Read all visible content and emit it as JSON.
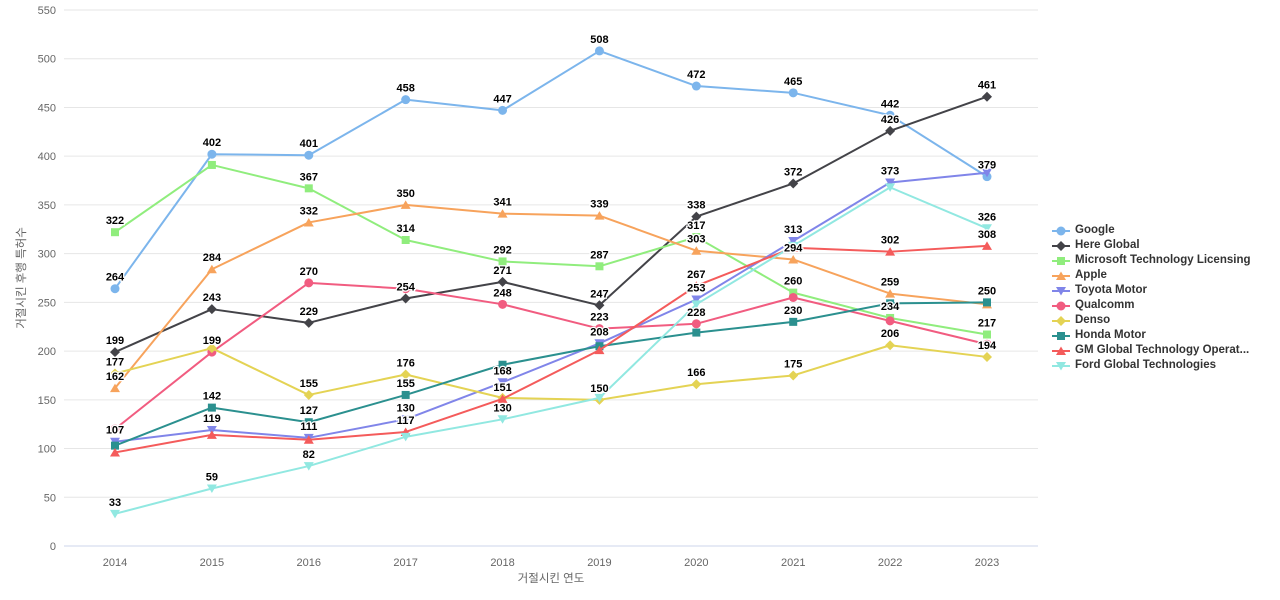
{
  "chart_data": {
    "type": "line",
    "title": "",
    "xlabel": "거절시킨 연도",
    "ylabel": "거절시킨 후행 특허수",
    "categories": [
      "2014",
      "2015",
      "2016",
      "2017",
      "2018",
      "2019",
      "2020",
      "2021",
      "2022",
      "2023"
    ],
    "y_ticks": [
      0,
      50,
      100,
      150,
      200,
      250,
      300,
      350,
      400,
      450,
      500,
      550
    ],
    "ylim": [
      0,
      550
    ],
    "grid": "horizontal-only",
    "legend_position": "right",
    "series": [
      {
        "name": "Google",
        "color": "#7CB5EC",
        "marker": "circle",
        "values": [
          264,
          402,
          401,
          458,
          447,
          508,
          472,
          465,
          442,
          379
        ],
        "labeled": [
          true,
          true,
          true,
          true,
          true,
          true,
          true,
          true,
          true,
          true
        ]
      },
      {
        "name": "Here Global",
        "color": "#434348",
        "marker": "diamond",
        "values": [
          199,
          243,
          229,
          254,
          271,
          247,
          338,
          372,
          426,
          461
        ],
        "labeled": [
          true,
          true,
          true,
          true,
          true,
          true,
          true,
          true,
          true,
          true
        ]
      },
      {
        "name": "Microsoft Technology Licensing",
        "color": "#90ED7D",
        "marker": "square",
        "values": [
          322,
          391,
          367,
          314,
          292,
          287,
          317,
          260,
          234,
          217
        ],
        "labeled": [
          true,
          false,
          true,
          true,
          true,
          true,
          true,
          true,
          true,
          true
        ]
      },
      {
        "name": "Apple",
        "color": "#F7A35C",
        "marker": "triangle",
        "values": [
          162,
          284,
          332,
          350,
          341,
          339,
          303,
          294,
          259,
          248
        ],
        "labeled": [
          true,
          true,
          true,
          true,
          true,
          true,
          true,
          true,
          true,
          false
        ]
      },
      {
        "name": "Toyota Motor",
        "color": "#8085E9",
        "marker": "triangle-down",
        "values": [
          107,
          119,
          111,
          130,
          168,
          208,
          253,
          313,
          373,
          383
        ],
        "labeled": [
          true,
          true,
          true,
          true,
          true,
          true,
          true,
          true,
          true,
          false
        ]
      },
      {
        "name": "Qualcomm",
        "color": "#F15C80",
        "marker": "circle",
        "values": [
          120,
          199,
          270,
          264,
          248,
          223,
          228,
          255,
          231,
          207
        ],
        "labeled": [
          false,
          true,
          true,
          false,
          true,
          true,
          true,
          false,
          false,
          false
        ]
      },
      {
        "name": "Denso",
        "color": "#E4D354",
        "marker": "diamond",
        "values": [
          177,
          203,
          155,
          176,
          152,
          150,
          166,
          175,
          206,
          194
        ],
        "labeled": [
          true,
          false,
          true,
          true,
          false,
          true,
          true,
          true,
          true,
          true
        ]
      },
      {
        "name": "Honda Motor",
        "color": "#2B908F",
        "marker": "square",
        "values": [
          103,
          142,
          127,
          155,
          186,
          205,
          219,
          230,
          249,
          250
        ],
        "labeled": [
          false,
          true,
          true,
          true,
          false,
          false,
          false,
          true,
          false,
          true
        ]
      },
      {
        "name": "GM Global Technology Operat...",
        "color": "#F45B5B",
        "marker": "triangle",
        "values": [
          96,
          114,
          109,
          117,
          151,
          201,
          267,
          306,
          302,
          308
        ],
        "labeled": [
          false,
          false,
          false,
          true,
          true,
          false,
          true,
          false,
          true,
          true
        ]
      },
      {
        "name": "Ford Global Technologies",
        "color": "#91E8E1",
        "marker": "triangle-down",
        "values": [
          33,
          59,
          82,
          112,
          130,
          152,
          248,
          308,
          368,
          326
        ],
        "labeled": [
          true,
          true,
          true,
          false,
          true,
          false,
          false,
          false,
          false,
          true
        ]
      }
    ]
  },
  "colors": {
    "background": "#ffffff",
    "gridline": "#e6e6e6",
    "axis_line": "#ccd6eb",
    "tick_text": "#666666",
    "axis_title_text": "#666666",
    "data_label_text": "#000000",
    "legend_text": "#333333"
  }
}
